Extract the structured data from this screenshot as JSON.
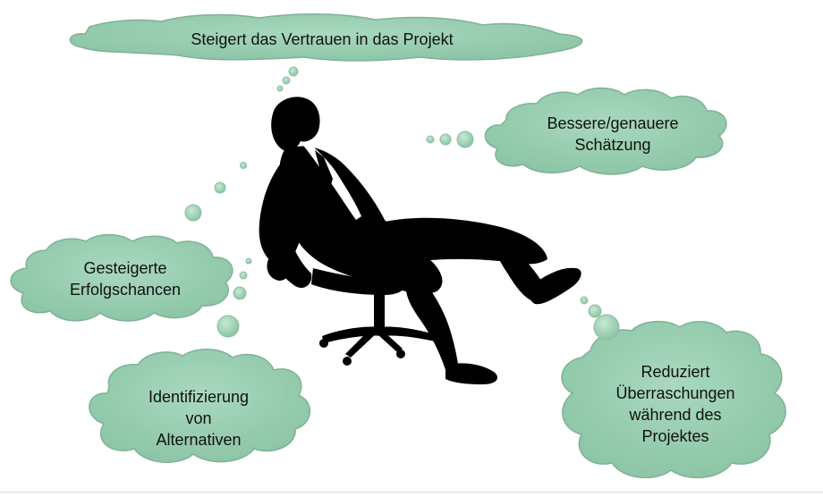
{
  "colors": {
    "cloud_fill": "#9cd0b4",
    "cloud_stroke": "#7fb296",
    "silhouette": "#000000",
    "text": "#111111"
  },
  "thoughts": {
    "top": [
      "Steigert das Vertrauen in das Projekt"
    ],
    "right": [
      "Bessere/genauere",
      "Schätzung"
    ],
    "left_middle": [
      "Gesteigerte",
      "Erfolgschancen"
    ],
    "left_bottom": [
      "Identifizierung",
      "von",
      "Alternativen"
    ],
    "right_bottom": [
      "Reduziert",
      "Überraschungen",
      "während des",
      "Projektes"
    ]
  }
}
